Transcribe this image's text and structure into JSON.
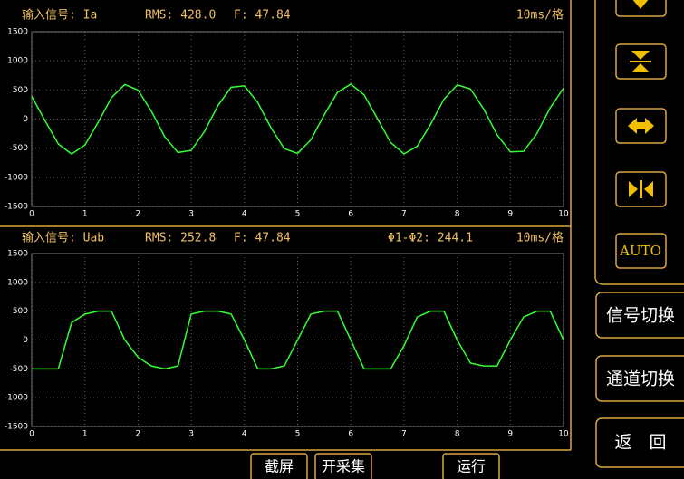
{
  "chart_data": [
    {
      "type": "line",
      "title": "输入信号: Ia",
      "annotations": [
        "RMS: 428.0",
        "F: 47.84",
        "10ms/格"
      ],
      "x": [
        0,
        0.25,
        0.5,
        0.75,
        1,
        1.25,
        1.5,
        1.75,
        2,
        2.25,
        2.5,
        2.75,
        3,
        3.25,
        3.5,
        3.75,
        4,
        4.25,
        4.5,
        4.75,
        5,
        5.25,
        5.5,
        5.75,
        6,
        6.25,
        6.5,
        6.75,
        7,
        7.25,
        7.5,
        7.75,
        8,
        8.25,
        8.5,
        8.75,
        9,
        9.25,
        9.5,
        9.75,
        10
      ],
      "values": [
        390,
        -27,
        -428,
        -600,
        -447,
        -54,
        368,
        592,
        498,
        135,
        -302,
        -574,
        -538,
        -212,
        229,
        546,
        569,
        286,
        -152,
        -508,
        -590,
        -355,
        72,
        459,
        599,
        416,
        10,
        -403,
        -598,
        -467,
        -91,
        339,
        586,
        517,
        170,
        -270,
        -563,
        -554,
        -247,
        194,
        529
      ],
      "color": "#33ff33",
      "xlim": [
        0,
        10
      ],
      "ylim": [
        -1500,
        1500
      ],
      "xticks": [
        0,
        1,
        2,
        3,
        4,
        5,
        6,
        7,
        8,
        9,
        10
      ],
      "yticks": [
        -1500,
        -1000,
        -500,
        0,
        500,
        1000,
        1500
      ],
      "grid": true
    },
    {
      "type": "line",
      "title": "输入信号: Uab",
      "annotations": [
        "RMS: 252.8",
        "F: 47.84",
        "Φ1-Φ2: 244.1",
        "10ms/格"
      ],
      "x": [
        0,
        0.25,
        0.5,
        0.75,
        1,
        1.25,
        1.5,
        1.75,
        2,
        2.25,
        2.5,
        2.75,
        3,
        3.25,
        3.5,
        3.75,
        4,
        4.25,
        4.5,
        4.75,
        5,
        5.25,
        5.5,
        5.75,
        6,
        6.25,
        6.5,
        6.75,
        7,
        7.25,
        7.5,
        7.75,
        8,
        8.25,
        8.5,
        8.75,
        9,
        9.25,
        9.5,
        9.75,
        10
      ],
      "values": [
        -500,
        -500,
        -500,
        300,
        450,
        500,
        500,
        0,
        -300,
        -450,
        -500,
        -450,
        450,
        500,
        500,
        450,
        0,
        -500,
        -500,
        -450,
        0,
        450,
        500,
        500,
        0,
        -500,
        -500,
        -500,
        -100,
        400,
        500,
        500,
        0,
        -400,
        -450,
        -450,
        0,
        400,
        500,
        500,
        0
      ],
      "color": "#33ff33",
      "xlim": [
        0,
        10
      ],
      "ylim": [
        -1500,
        1500
      ],
      "xticks": [
        0,
        1,
        2,
        3,
        4,
        5,
        6,
        7,
        8,
        9,
        10
      ],
      "yticks": [
        -1500,
        -1000,
        -500,
        0,
        500,
        1000,
        1500
      ],
      "grid": true
    }
  ],
  "side_buttons": {
    "auto": "AUTO",
    "signal": "信号切换",
    "channel": "通道切换",
    "back": "返　回"
  },
  "bottom_buttons": [
    "截屏",
    "开采集",
    "运行"
  ]
}
